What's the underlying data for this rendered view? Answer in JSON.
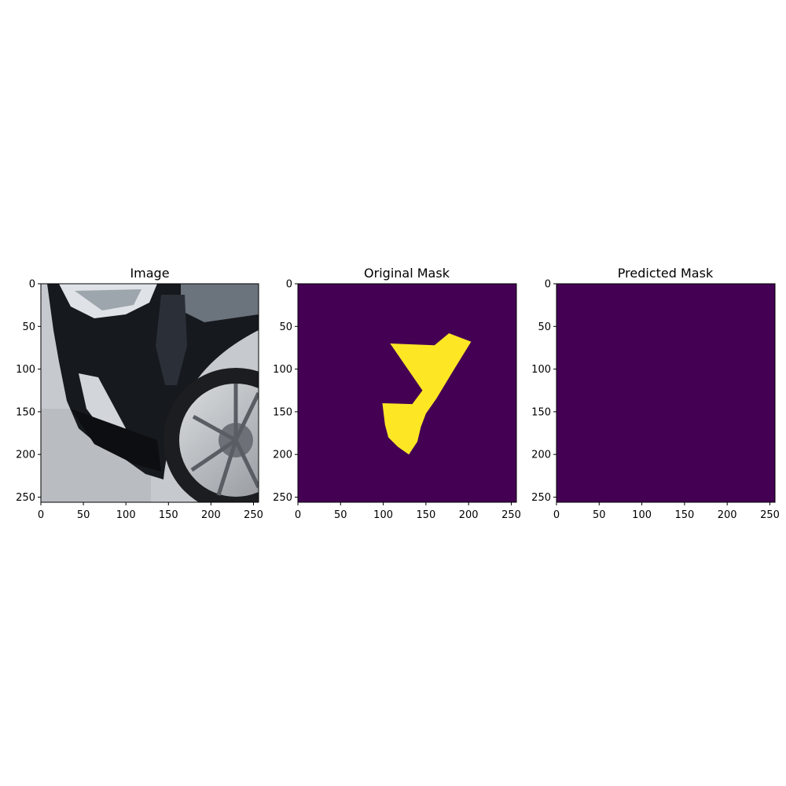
{
  "figure": {
    "panels": [
      {
        "title": "Image"
      },
      {
        "title": "Original Mask"
      },
      {
        "title": "Predicted Mask"
      }
    ]
  },
  "chart_data": [
    {
      "type": "heatmap",
      "title": "Image",
      "content": "photo",
      "xlim": [
        0,
        256
      ],
      "ylim": [
        256,
        0
      ],
      "xticks": [
        0,
        50,
        100,
        150,
        200,
        250
      ],
      "yticks": [
        0,
        50,
        100,
        150,
        200,
        250
      ]
    },
    {
      "type": "heatmap",
      "title": "Original Mask",
      "colormap": "viridis",
      "background_color": "#440154",
      "mask_color": "#fde725",
      "mask_polygon": [
        [
          108,
          70
        ],
        [
          160,
          72
        ],
        [
          177,
          58
        ],
        [
          203,
          68
        ],
        [
          182,
          102
        ],
        [
          162,
          135
        ],
        [
          150,
          152
        ],
        [
          144,
          168
        ],
        [
          140,
          185
        ],
        [
          130,
          200
        ],
        [
          117,
          191
        ],
        [
          106,
          180
        ],
        [
          102,
          165
        ],
        [
          99,
          140
        ],
        [
          134,
          141
        ],
        [
          146,
          125
        ]
      ],
      "xlim": [
        0,
        256
      ],
      "ylim": [
        256,
        0
      ],
      "xticks": [
        0,
        50,
        100,
        150,
        200,
        250
      ],
      "yticks": [
        0,
        50,
        100,
        150,
        200,
        250
      ]
    },
    {
      "type": "heatmap",
      "title": "Predicted Mask",
      "colormap": "viridis",
      "background_color": "#440154",
      "mask_polygon": [],
      "xlim": [
        0,
        256
      ],
      "ylim": [
        256,
        0
      ],
      "xticks": [
        0,
        50,
        100,
        150,
        200,
        250
      ],
      "yticks": [
        0,
        50,
        100,
        150,
        200,
        250
      ]
    }
  ]
}
